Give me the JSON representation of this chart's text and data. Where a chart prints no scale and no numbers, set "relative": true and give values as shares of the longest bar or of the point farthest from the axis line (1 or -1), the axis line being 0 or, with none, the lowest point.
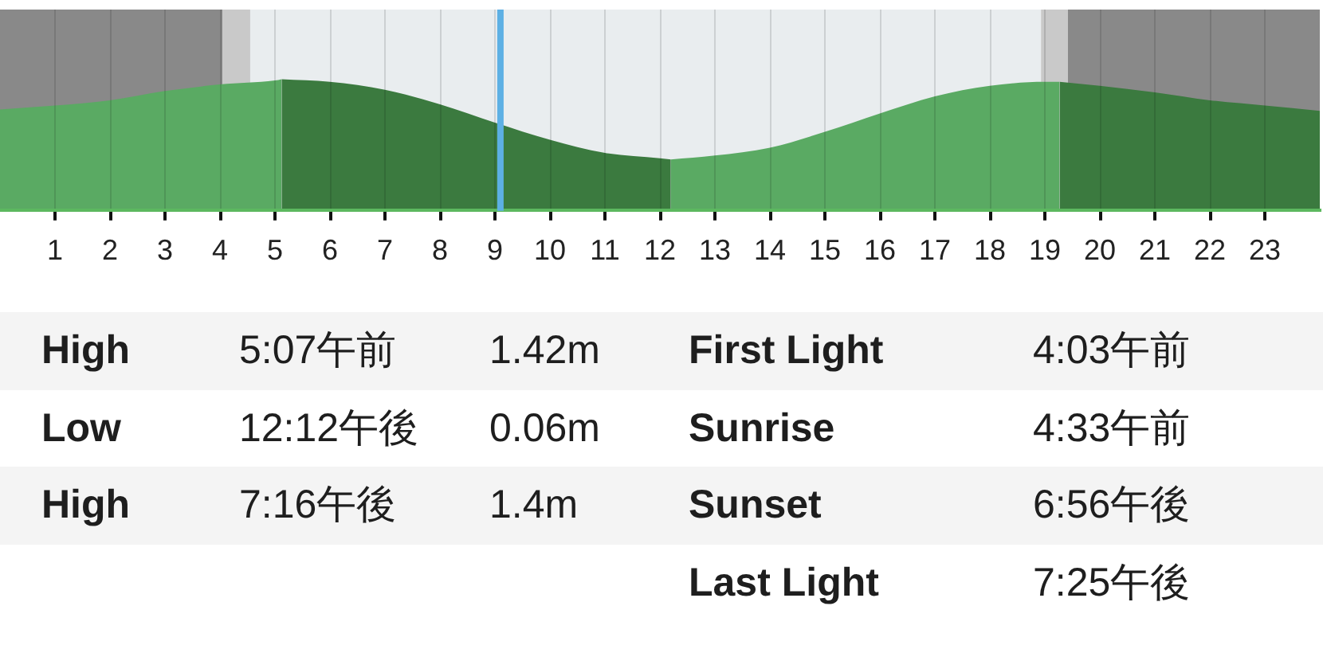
{
  "chart_data": [
    {
      "type": "area",
      "relative": true,
      "xlim": [
        0,
        24
      ],
      "xticks": [
        1,
        2,
        3,
        4,
        5,
        6,
        7,
        8,
        9,
        10,
        11,
        12,
        13,
        14,
        15,
        16,
        17,
        18,
        19,
        20,
        21,
        22,
        23
      ],
      "grid": "x",
      "legend": false,
      "series": [
        {
          "color": "#5aaa63",
          "x": [
            0,
            1,
            2,
            3,
            4,
            5,
            5.12
          ],
          "values": [
            0.77,
            0.8,
            0.84,
            0.91,
            0.96,
            0.99,
            1
          ]
        },
        {
          "color": "#3b7a3f",
          "x": [
            5.12,
            6,
            7,
            8,
            9,
            10,
            11,
            12,
            12.2
          ],
          "values": [
            1,
            0.98,
            0.92,
            0.81,
            0.67,
            0.54,
            0.44,
            0.4,
            0.39
          ]
        },
        {
          "color": "#5aaa63",
          "x": [
            12.2,
            13,
            14,
            15,
            16,
            17,
            18,
            19,
            19.27
          ],
          "values": [
            0.39,
            0.42,
            0.48,
            0.6,
            0.74,
            0.87,
            0.95,
            0.98,
            0.98
          ]
        },
        {
          "color": "#3b7a3f",
          "x": [
            19.27,
            20,
            21,
            22,
            23,
            24
          ],
          "values": [
            0.98,
            0.95,
            0.9,
            0.84,
            0.8,
            0.76
          ]
        }
      ],
      "bands": [
        {
          "axis": "x",
          "from": 0,
          "to": 4.05,
          "color": "#898989"
        },
        {
          "axis": "x",
          "from": 4.05,
          "to": 4.55,
          "color": "#c9c9c9"
        },
        {
          "axis": "x",
          "from": 4.55,
          "to": 18.93,
          "color": "#e9edef"
        },
        {
          "axis": "x",
          "from": 18.93,
          "to": 19.42,
          "color": "#c9c9c9"
        },
        {
          "axis": "x",
          "from": 19.42,
          "to": 24,
          "color": "#898989"
        }
      ],
      "ref_lines": [
        {
          "axis": "x",
          "value": 9.1,
          "color": "#5db0e4"
        }
      ]
    },
    {
      "type": "other",
      "annotations": [
        "High",
        "5:07午前",
        "1.42m",
        "First Light",
        "4:03午前",
        "Low",
        "12:12午後",
        "0.06m",
        "Sunrise",
        "4:33午前",
        "High",
        "7:16午後",
        "1.4m",
        "Sunset",
        "6:56午後",
        "Last Light",
        "7:25午後"
      ]
    }
  ]
}
